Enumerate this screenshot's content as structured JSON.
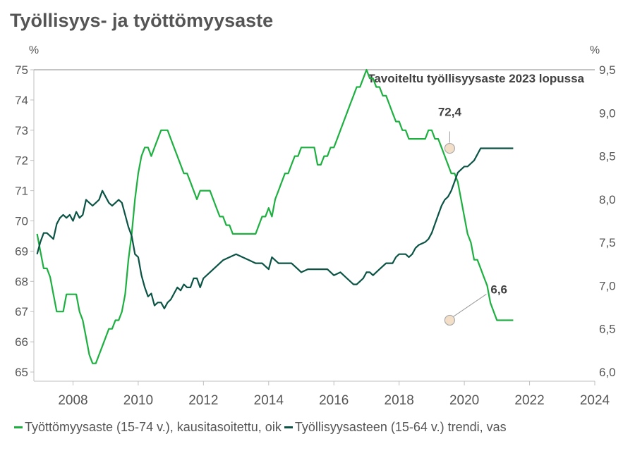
{
  "chart_data": {
    "type": "line",
    "title": "Työllisyys- ja työttömyysaste",
    "left_axis": {
      "unit": "%",
      "ylim": [
        65,
        75
      ],
      "ticks": [
        "65",
        "66",
        "67",
        "68",
        "69",
        "70",
        "71",
        "72",
        "73",
        "74",
        "75"
      ]
    },
    "right_axis": {
      "unit": "%",
      "ylim": [
        6.0,
        9.5
      ],
      "ticks": [
        "6,0",
        "6,5",
        "7,0",
        "7,5",
        "8,0",
        "8,5",
        "9,0",
        "9,5"
      ]
    },
    "x_axis": {
      "xlim": [
        2006.8,
        2024
      ],
      "ticks": [
        "2008",
        "2010",
        "2012",
        "2014",
        "2016",
        "2018",
        "2020",
        "2022",
        "2024"
      ]
    },
    "reference_line": {
      "label": "Tavoiteltu työllisyysaste 2023 lopussa",
      "value": 75,
      "axis": "left"
    },
    "annotations": [
      {
        "text": "72,4",
        "x": 2019.4,
        "value": 72.4,
        "axis": "left"
      },
      {
        "text": "6,6",
        "x": 2019.4,
        "value": 6.6,
        "axis": "right"
      }
    ],
    "series": [
      {
        "name": "Työttömyysaste (15-74 v.), kausitasoitettu, oik",
        "axis": "right",
        "color": "#1DB040",
        "points": [
          [
            2006.9,
            7.6
          ],
          [
            2007.0,
            7.4
          ],
          [
            2007.1,
            7.2
          ],
          [
            2007.2,
            7.2
          ],
          [
            2007.3,
            7.1
          ],
          [
            2007.4,
            6.9
          ],
          [
            2007.5,
            6.7
          ],
          [
            2007.6,
            6.7
          ],
          [
            2007.7,
            6.7
          ],
          [
            2007.8,
            6.9
          ],
          [
            2007.9,
            6.9
          ],
          [
            2008.0,
            6.9
          ],
          [
            2008.1,
            6.9
          ],
          [
            2008.2,
            6.7
          ],
          [
            2008.3,
            6.6
          ],
          [
            2008.4,
            6.4
          ],
          [
            2008.5,
            6.2
          ],
          [
            2008.6,
            6.1
          ],
          [
            2008.7,
            6.1
          ],
          [
            2008.8,
            6.2
          ],
          [
            2008.9,
            6.3
          ],
          [
            2009.0,
            6.4
          ],
          [
            2009.1,
            6.5
          ],
          [
            2009.2,
            6.5
          ],
          [
            2009.3,
            6.6
          ],
          [
            2009.4,
            6.6
          ],
          [
            2009.5,
            6.7
          ],
          [
            2009.6,
            6.9
          ],
          [
            2009.7,
            7.3
          ],
          [
            2009.8,
            7.6
          ],
          [
            2009.9,
            8.0
          ],
          [
            2010.0,
            8.3
          ],
          [
            2010.1,
            8.5
          ],
          [
            2010.2,
            8.6
          ],
          [
            2010.3,
            8.6
          ],
          [
            2010.4,
            8.5
          ],
          [
            2010.5,
            8.6
          ],
          [
            2010.6,
            8.7
          ],
          [
            2010.7,
            8.8
          ],
          [
            2010.8,
            8.8
          ],
          [
            2010.9,
            8.8
          ],
          [
            2011.0,
            8.7
          ],
          [
            2011.1,
            8.6
          ],
          [
            2011.2,
            8.5
          ],
          [
            2011.3,
            8.4
          ],
          [
            2011.4,
            8.3
          ],
          [
            2011.5,
            8.3
          ],
          [
            2011.6,
            8.2
          ],
          [
            2011.7,
            8.1
          ],
          [
            2011.8,
            8.0
          ],
          [
            2011.9,
            8.1
          ],
          [
            2012.0,
            8.1
          ],
          [
            2012.1,
            8.1
          ],
          [
            2012.2,
            8.1
          ],
          [
            2012.3,
            8.0
          ],
          [
            2012.4,
            7.9
          ],
          [
            2012.5,
            7.8
          ],
          [
            2012.6,
            7.8
          ],
          [
            2012.7,
            7.7
          ],
          [
            2012.8,
            7.7
          ],
          [
            2012.9,
            7.6
          ],
          [
            2013.0,
            7.6
          ],
          [
            2013.1,
            7.6
          ],
          [
            2013.2,
            7.6
          ],
          [
            2013.3,
            7.6
          ],
          [
            2013.4,
            7.6
          ],
          [
            2013.5,
            7.6
          ],
          [
            2013.6,
            7.6
          ],
          [
            2013.7,
            7.7
          ],
          [
            2013.8,
            7.8
          ],
          [
            2013.9,
            7.8
          ],
          [
            2014.0,
            7.9
          ],
          [
            2014.1,
            7.8
          ],
          [
            2014.2,
            8.0
          ],
          [
            2014.3,
            8.1
          ],
          [
            2014.4,
            8.2
          ],
          [
            2014.5,
            8.3
          ],
          [
            2014.6,
            8.3
          ],
          [
            2014.7,
            8.4
          ],
          [
            2014.8,
            8.5
          ],
          [
            2014.9,
            8.5
          ],
          [
            2015.0,
            8.6
          ],
          [
            2015.1,
            8.6
          ],
          [
            2015.2,
            8.6
          ],
          [
            2015.3,
            8.6
          ],
          [
            2015.4,
            8.6
          ],
          [
            2015.5,
            8.4
          ],
          [
            2015.6,
            8.4
          ],
          [
            2015.7,
            8.5
          ],
          [
            2015.8,
            8.5
          ],
          [
            2015.9,
            8.6
          ],
          [
            2016.0,
            8.6
          ],
          [
            2016.1,
            8.7
          ],
          [
            2016.2,
            8.8
          ],
          [
            2016.3,
            8.9
          ],
          [
            2016.4,
            9.0
          ],
          [
            2016.5,
            9.1
          ],
          [
            2016.6,
            9.2
          ],
          [
            2016.7,
            9.3
          ],
          [
            2016.8,
            9.3
          ],
          [
            2016.9,
            9.4
          ],
          [
            2017.0,
            9.5
          ],
          [
            2017.1,
            9.4
          ],
          [
            2017.2,
            9.4
          ],
          [
            2017.3,
            9.3
          ],
          [
            2017.4,
            9.3
          ],
          [
            2017.5,
            9.2
          ],
          [
            2017.6,
            9.2
          ],
          [
            2017.7,
            9.1
          ],
          [
            2017.8,
            9.0
          ],
          [
            2017.9,
            8.9
          ],
          [
            2018.0,
            8.9
          ],
          [
            2018.1,
            8.8
          ],
          [
            2018.2,
            8.8
          ],
          [
            2018.3,
            8.7
          ],
          [
            2018.4,
            8.7
          ],
          [
            2018.5,
            8.7
          ],
          [
            2018.6,
            8.7
          ],
          [
            2018.7,
            8.7
          ],
          [
            2018.8,
            8.7
          ],
          [
            2018.9,
            8.8
          ],
          [
            2019.0,
            8.8
          ],
          [
            2019.1,
            8.7
          ],
          [
            2019.2,
            8.7
          ],
          [
            2019.3,
            8.6
          ],
          [
            2019.4,
            8.5
          ],
          [
            2019.5,
            8.4
          ],
          [
            2019.6,
            8.3
          ],
          [
            2019.7,
            8.3
          ],
          [
            2019.8,
            8.2
          ],
          [
            2019.9,
            8.0
          ],
          [
            2020.0,
            7.8
          ],
          [
            2020.1,
            7.6
          ],
          [
            2020.2,
            7.5
          ],
          [
            2020.3,
            7.3
          ],
          [
            2020.4,
            7.3
          ],
          [
            2020.5,
            7.2
          ],
          [
            2020.6,
            7.1
          ],
          [
            2020.7,
            7.0
          ],
          [
            2020.8,
            6.8
          ],
          [
            2020.9,
            6.7
          ],
          [
            2021.0,
            6.6
          ],
          [
            2021.2,
            6.6
          ],
          [
            2021.4,
            6.6
          ],
          [
            2021.5,
            6.6
          ]
        ]
      },
      {
        "name": "Työllisyysasteen (15-64 v.) trendi, vas",
        "axis": "left",
        "color": "#0B5345",
        "points": [
          [
            2006.9,
            68.9
          ],
          [
            2007.0,
            69.3
          ],
          [
            2007.1,
            69.6
          ],
          [
            2007.2,
            69.6
          ],
          [
            2007.3,
            69.5
          ],
          [
            2007.4,
            69.4
          ],
          [
            2007.5,
            69.9
          ],
          [
            2007.6,
            70.1
          ],
          [
            2007.7,
            70.2
          ],
          [
            2007.8,
            70.1
          ],
          [
            2007.9,
            70.2
          ],
          [
            2008.0,
            70.0
          ],
          [
            2008.1,
            70.3
          ],
          [
            2008.2,
            70.1
          ],
          [
            2008.3,
            70.2
          ],
          [
            2008.4,
            70.7
          ],
          [
            2008.5,
            70.6
          ],
          [
            2008.6,
            70.5
          ],
          [
            2008.7,
            70.6
          ],
          [
            2008.8,
            70.7
          ],
          [
            2008.9,
            71.0
          ],
          [
            2009.0,
            70.8
          ],
          [
            2009.1,
            70.6
          ],
          [
            2009.2,
            70.5
          ],
          [
            2009.3,
            70.6
          ],
          [
            2009.4,
            70.7
          ],
          [
            2009.5,
            70.6
          ],
          [
            2009.6,
            70.2
          ],
          [
            2009.7,
            69.8
          ],
          [
            2009.8,
            69.5
          ],
          [
            2009.9,
            68.9
          ],
          [
            2010.0,
            68.8
          ],
          [
            2010.1,
            68.2
          ],
          [
            2010.2,
            67.8
          ],
          [
            2010.3,
            67.5
          ],
          [
            2010.4,
            67.6
          ],
          [
            2010.5,
            67.2
          ],
          [
            2010.6,
            67.3
          ],
          [
            2010.7,
            67.3
          ],
          [
            2010.8,
            67.1
          ],
          [
            2010.9,
            67.3
          ],
          [
            2011.0,
            67.4
          ],
          [
            2011.1,
            67.6
          ],
          [
            2011.2,
            67.8
          ],
          [
            2011.3,
            67.7
          ],
          [
            2011.4,
            67.9
          ],
          [
            2011.5,
            67.8
          ],
          [
            2011.6,
            67.8
          ],
          [
            2011.7,
            68.1
          ],
          [
            2011.8,
            68.1
          ],
          [
            2011.9,
            67.8
          ],
          [
            2012.0,
            68.1
          ],
          [
            2012.2,
            68.3
          ],
          [
            2012.4,
            68.5
          ],
          [
            2012.6,
            68.7
          ],
          [
            2012.8,
            68.8
          ],
          [
            2013.0,
            68.9
          ],
          [
            2013.2,
            68.8
          ],
          [
            2013.4,
            68.7
          ],
          [
            2013.6,
            68.6
          ],
          [
            2013.8,
            68.6
          ],
          [
            2013.9,
            68.5
          ],
          [
            2014.0,
            68.4
          ],
          [
            2014.1,
            68.8
          ],
          [
            2014.2,
            68.7
          ],
          [
            2014.3,
            68.6
          ],
          [
            2014.5,
            68.6
          ],
          [
            2014.7,
            68.6
          ],
          [
            2014.9,
            68.4
          ],
          [
            2015.0,
            68.3
          ],
          [
            2015.2,
            68.4
          ],
          [
            2015.4,
            68.4
          ],
          [
            2015.6,
            68.4
          ],
          [
            2015.8,
            68.4
          ],
          [
            2016.0,
            68.2
          ],
          [
            2016.2,
            68.3
          ],
          [
            2016.4,
            68.1
          ],
          [
            2016.6,
            67.9
          ],
          [
            2016.7,
            67.9
          ],
          [
            2016.8,
            68.0
          ],
          [
            2016.9,
            68.1
          ],
          [
            2017.0,
            68.3
          ],
          [
            2017.1,
            68.3
          ],
          [
            2017.2,
            68.2
          ],
          [
            2017.4,
            68.4
          ],
          [
            2017.6,
            68.6
          ],
          [
            2017.8,
            68.6
          ],
          [
            2017.9,
            68.8
          ],
          [
            2018.0,
            68.9
          ],
          [
            2018.2,
            68.9
          ],
          [
            2018.3,
            68.8
          ],
          [
            2018.4,
            68.9
          ],
          [
            2018.5,
            69.1
          ],
          [
            2018.6,
            69.2
          ],
          [
            2018.8,
            69.3
          ],
          [
            2018.9,
            69.4
          ],
          [
            2019.0,
            69.6
          ],
          [
            2019.1,
            69.9
          ],
          [
            2019.2,
            70.2
          ],
          [
            2019.3,
            70.5
          ],
          [
            2019.4,
            70.7
          ],
          [
            2019.5,
            70.8
          ],
          [
            2019.6,
            71.0
          ],
          [
            2019.7,
            71.3
          ],
          [
            2019.8,
            71.6
          ],
          [
            2019.9,
            71.7
          ],
          [
            2020.0,
            71.8
          ],
          [
            2020.1,
            71.8
          ],
          [
            2020.2,
            71.9
          ],
          [
            2020.3,
            72.0
          ],
          [
            2020.4,
            72.2
          ],
          [
            2020.5,
            72.4
          ],
          [
            2020.7,
            72.4
          ],
          [
            2020.9,
            72.4
          ],
          [
            2021.1,
            72.4
          ],
          [
            2021.3,
            72.4
          ],
          [
            2021.5,
            72.4
          ]
        ]
      }
    ]
  }
}
